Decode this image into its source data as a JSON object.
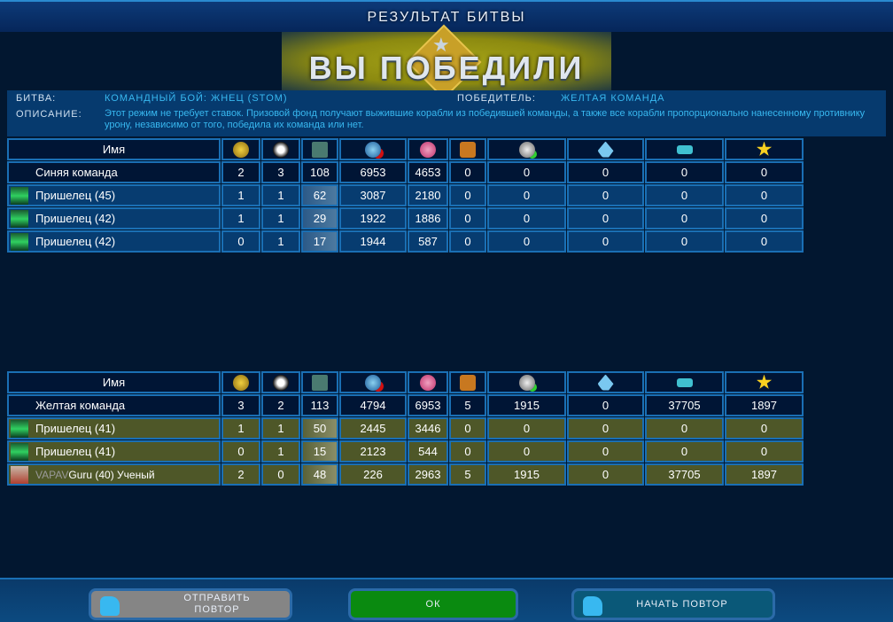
{
  "window_title": "РЕЗУЛЬТАТ БИТВЫ",
  "banner": "ВЫ ПОБЕДИЛИ",
  "info": {
    "battle_label": "БИТВА:",
    "battle_value": "КОМАНДНЫЙ БОЙ: ЖНЕЦ (STOM)",
    "winner_label": "ПОБЕДИТЕЛЬ:",
    "winner_value": "ЖЕЛТАЯ КОМАНДА",
    "desc_label": "ОПИСАНИЕ:",
    "description": "Этот режим не требует ставок. Призовой фонд получают выжившие корабли из победившей команды, а также все корабли пропорционально нанесенному противнику урону, независимо от того, победила их команда или нет."
  },
  "columns": {
    "name": "Имя",
    "icons": [
      "rank-medal-icon",
      "skull-kills-icon",
      "modules-icon",
      "damage-taken-icon",
      "damage-dealt-icon",
      "chest-icon",
      "repair-plus-icon",
      "crystal-icon",
      "credits-icon",
      "star-icon"
    ]
  },
  "blue_team": {
    "name": "Синяя команда",
    "totals": [
      "2",
      "3",
      "108",
      "6953",
      "4653",
      "0",
      "0",
      "0",
      "0",
      "0"
    ],
    "players": [
      {
        "name": "Пришелец (45)",
        "values": [
          "1",
          "1",
          "62",
          "3087",
          "2180",
          "0",
          "0",
          "0",
          "0",
          "0"
        ]
      },
      {
        "name": "Пришелец (42)",
        "values": [
          "1",
          "1",
          "29",
          "1922",
          "1886",
          "0",
          "0",
          "0",
          "0",
          "0"
        ]
      },
      {
        "name": "Пришелец (42)",
        "values": [
          "0",
          "1",
          "17",
          "1944",
          "587",
          "0",
          "0",
          "0",
          "0",
          "0"
        ]
      }
    ]
  },
  "yellow_team": {
    "name": "Желтая команда",
    "totals": [
      "3",
      "2",
      "113",
      "4794",
      "6953",
      "5",
      "1915",
      "0",
      "37705",
      "1897"
    ],
    "players": [
      {
        "name": "Пришелец (41)",
        "values": [
          "1",
          "1",
          "50",
          "2445",
          "3446",
          "0",
          "0",
          "0",
          "0",
          "0"
        ]
      },
      {
        "name": "Пришелец (41)",
        "values": [
          "0",
          "1",
          "15",
          "2123",
          "544",
          "0",
          "0",
          "0",
          "0",
          "0"
        ]
      },
      {
        "name": "Guru (40) Ученый",
        "nick": "VAPAV",
        "values": [
          "2",
          "0",
          "48",
          "226",
          "2963",
          "5",
          "1915",
          "0",
          "37705",
          "1897"
        ]
      }
    ]
  },
  "buttons": {
    "send_replay": "ОТПРАВИТЬ ПОВТОР",
    "ok": "ОК",
    "start_replay": "НАЧАТЬ ПОВТОР"
  },
  "colors": {
    "accent": "#38b8f0",
    "ok": "#0a8a10",
    "yellow_row": "#4e5728",
    "blue_row": "#073c70"
  }
}
